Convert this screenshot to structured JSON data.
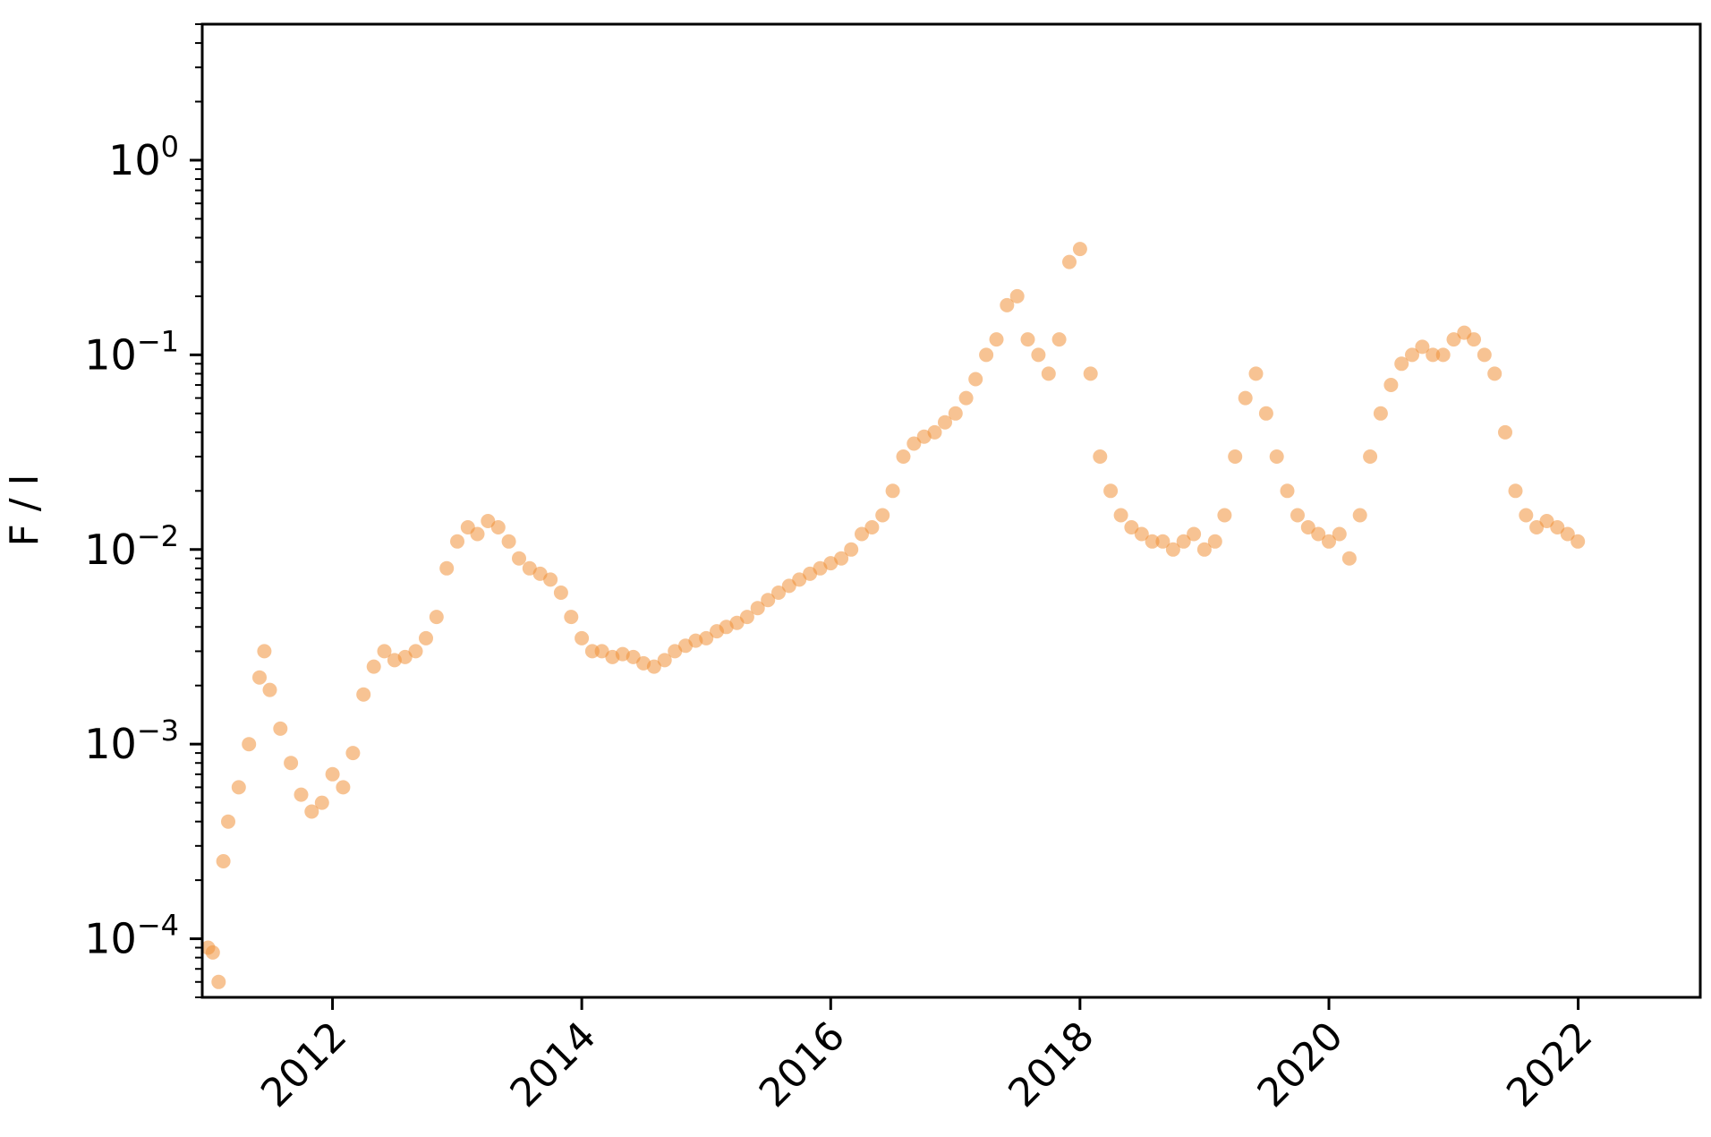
{
  "chart_data": {
    "type": "scatter",
    "title": "",
    "xlabel": "",
    "ylabel": "F / I",
    "x_scale": "time",
    "y_scale": "log",
    "xlim": [
      "2010-12-15",
      "2022-12-25"
    ],
    "ylim": [
      5e-05,
      5
    ],
    "x_ticks": [
      "2012",
      "2014",
      "2016",
      "2018",
      "2020",
      "2022"
    ],
    "y_ticks": [
      {
        "value": 1,
        "base": "10",
        "exp": "0"
      },
      {
        "value": 0.1,
        "base": "10",
        "exp": "−1"
      },
      {
        "value": 0.01,
        "base": "10",
        "exp": "−2"
      },
      {
        "value": 0.001,
        "base": "10",
        "exp": "−3"
      },
      {
        "value": 0.0001,
        "base": "10",
        "exp": "−4"
      }
    ],
    "grid": false,
    "legend": "none",
    "marker_color": "#f0913a",
    "series": [
      {
        "values": [
          [
            "2011-01-01",
            9e-05
          ],
          [
            "2011-01-15",
            8.5e-05
          ],
          [
            "2011-02-01",
            6e-05
          ],
          [
            "2011-02-15",
            0.00025
          ],
          [
            "2011-03-01",
            0.0004
          ],
          [
            "2011-04-01",
            0.0006
          ],
          [
            "2011-05-01",
            0.001
          ],
          [
            "2011-06-01",
            0.0022
          ],
          [
            "2011-06-15",
            0.003
          ],
          [
            "2011-07-01",
            0.0019
          ],
          [
            "2011-08-01",
            0.0012
          ],
          [
            "2011-09-01",
            0.0008
          ],
          [
            "2011-10-01",
            0.00055
          ],
          [
            "2011-11-01",
            0.00045
          ],
          [
            "2011-12-01",
            0.0005
          ],
          [
            "2012-01-01",
            0.0007
          ],
          [
            "2012-02-01",
            0.0006
          ],
          [
            "2012-03-01",
            0.0009
          ],
          [
            "2012-04-01",
            0.0018
          ],
          [
            "2012-05-01",
            0.0025
          ],
          [
            "2012-06-01",
            0.003
          ],
          [
            "2012-07-01",
            0.0027
          ],
          [
            "2012-08-01",
            0.0028
          ],
          [
            "2012-09-01",
            0.003
          ],
          [
            "2012-10-01",
            0.0035
          ],
          [
            "2012-11-01",
            0.0045
          ],
          [
            "2012-12-01",
            0.008
          ],
          [
            "2013-01-01",
            0.011
          ],
          [
            "2013-02-01",
            0.013
          ],
          [
            "2013-03-01",
            0.012
          ],
          [
            "2013-04-01",
            0.014
          ],
          [
            "2013-05-01",
            0.013
          ],
          [
            "2013-06-01",
            0.011
          ],
          [
            "2013-07-01",
            0.009
          ],
          [
            "2013-08-01",
            0.008
          ],
          [
            "2013-09-01",
            0.0075
          ],
          [
            "2013-10-01",
            0.007
          ],
          [
            "2013-11-01",
            0.006
          ],
          [
            "2013-12-01",
            0.0045
          ],
          [
            "2014-01-01",
            0.0035
          ],
          [
            "2014-02-01",
            0.003
          ],
          [
            "2014-03-01",
            0.003
          ],
          [
            "2014-04-01",
            0.0028
          ],
          [
            "2014-05-01",
            0.0029
          ],
          [
            "2014-06-01",
            0.0028
          ],
          [
            "2014-07-01",
            0.0026
          ],
          [
            "2014-08-01",
            0.0025
          ],
          [
            "2014-09-01",
            0.0027
          ],
          [
            "2014-10-01",
            0.003
          ],
          [
            "2014-11-01",
            0.0032
          ],
          [
            "2014-12-01",
            0.0034
          ],
          [
            "2015-01-01",
            0.0035
          ],
          [
            "2015-02-01",
            0.0038
          ],
          [
            "2015-03-01",
            0.004
          ],
          [
            "2015-04-01",
            0.0042
          ],
          [
            "2015-05-01",
            0.0045
          ],
          [
            "2015-06-01",
            0.005
          ],
          [
            "2015-07-01",
            0.0055
          ],
          [
            "2015-08-01",
            0.006
          ],
          [
            "2015-09-01",
            0.0065
          ],
          [
            "2015-10-01",
            0.007
          ],
          [
            "2015-11-01",
            0.0075
          ],
          [
            "2015-12-01",
            0.008
          ],
          [
            "2016-01-01",
            0.0085
          ],
          [
            "2016-02-01",
            0.009
          ],
          [
            "2016-03-01",
            0.01
          ],
          [
            "2016-04-01",
            0.012
          ],
          [
            "2016-05-01",
            0.013
          ],
          [
            "2016-06-01",
            0.015
          ],
          [
            "2016-07-01",
            0.02
          ],
          [
            "2016-08-01",
            0.03
          ],
          [
            "2016-09-01",
            0.035
          ],
          [
            "2016-10-01",
            0.038
          ],
          [
            "2016-11-01",
            0.04
          ],
          [
            "2016-12-01",
            0.045
          ],
          [
            "2017-01-01",
            0.05
          ],
          [
            "2017-02-01",
            0.06
          ],
          [
            "2017-03-01",
            0.075
          ],
          [
            "2017-04-01",
            0.1
          ],
          [
            "2017-05-01",
            0.12
          ],
          [
            "2017-06-01",
            0.18
          ],
          [
            "2017-07-01",
            0.2
          ],
          [
            "2017-08-01",
            0.12
          ],
          [
            "2017-09-01",
            0.1
          ],
          [
            "2017-10-01",
            0.08
          ],
          [
            "2017-11-01",
            0.12
          ],
          [
            "2017-12-01",
            0.3
          ],
          [
            "2018-01-01",
            0.35
          ],
          [
            "2018-02-01",
            0.08
          ],
          [
            "2018-03-01",
            0.03
          ],
          [
            "2018-04-01",
            0.02
          ],
          [
            "2018-05-01",
            0.015
          ],
          [
            "2018-06-01",
            0.013
          ],
          [
            "2018-07-01",
            0.012
          ],
          [
            "2018-08-01",
            0.011
          ],
          [
            "2018-09-01",
            0.011
          ],
          [
            "2018-10-01",
            0.01
          ],
          [
            "2018-11-01",
            0.011
          ],
          [
            "2018-12-01",
            0.012
          ],
          [
            "2019-01-01",
            0.01
          ],
          [
            "2019-02-01",
            0.011
          ],
          [
            "2019-03-01",
            0.015
          ],
          [
            "2019-04-01",
            0.03
          ],
          [
            "2019-05-01",
            0.06
          ],
          [
            "2019-06-01",
            0.08
          ],
          [
            "2019-07-01",
            0.05
          ],
          [
            "2019-08-01",
            0.03
          ],
          [
            "2019-09-01",
            0.02
          ],
          [
            "2019-10-01",
            0.015
          ],
          [
            "2019-11-01",
            0.013
          ],
          [
            "2019-12-01",
            0.012
          ],
          [
            "2020-01-01",
            0.011
          ],
          [
            "2020-02-01",
            0.012
          ],
          [
            "2020-03-01",
            0.009
          ],
          [
            "2020-04-01",
            0.015
          ],
          [
            "2020-05-01",
            0.03
          ],
          [
            "2020-06-01",
            0.05
          ],
          [
            "2020-07-01",
            0.07
          ],
          [
            "2020-08-01",
            0.09
          ],
          [
            "2020-09-01",
            0.1
          ],
          [
            "2020-10-01",
            0.11
          ],
          [
            "2020-11-01",
            0.1
          ],
          [
            "2020-12-01",
            0.1
          ],
          [
            "2021-01-01",
            0.12
          ],
          [
            "2021-02-01",
            0.13
          ],
          [
            "2021-03-01",
            0.12
          ],
          [
            "2021-04-01",
            0.1
          ],
          [
            "2021-05-01",
            0.08
          ],
          [
            "2021-06-01",
            0.04
          ],
          [
            "2021-07-01",
            0.02
          ],
          [
            "2021-08-01",
            0.015
          ],
          [
            "2021-09-01",
            0.013
          ],
          [
            "2021-10-01",
            0.014
          ],
          [
            "2021-11-01",
            0.013
          ],
          [
            "2021-12-01",
            0.012
          ],
          [
            "2021-12-31",
            0.011
          ]
        ]
      }
    ]
  }
}
